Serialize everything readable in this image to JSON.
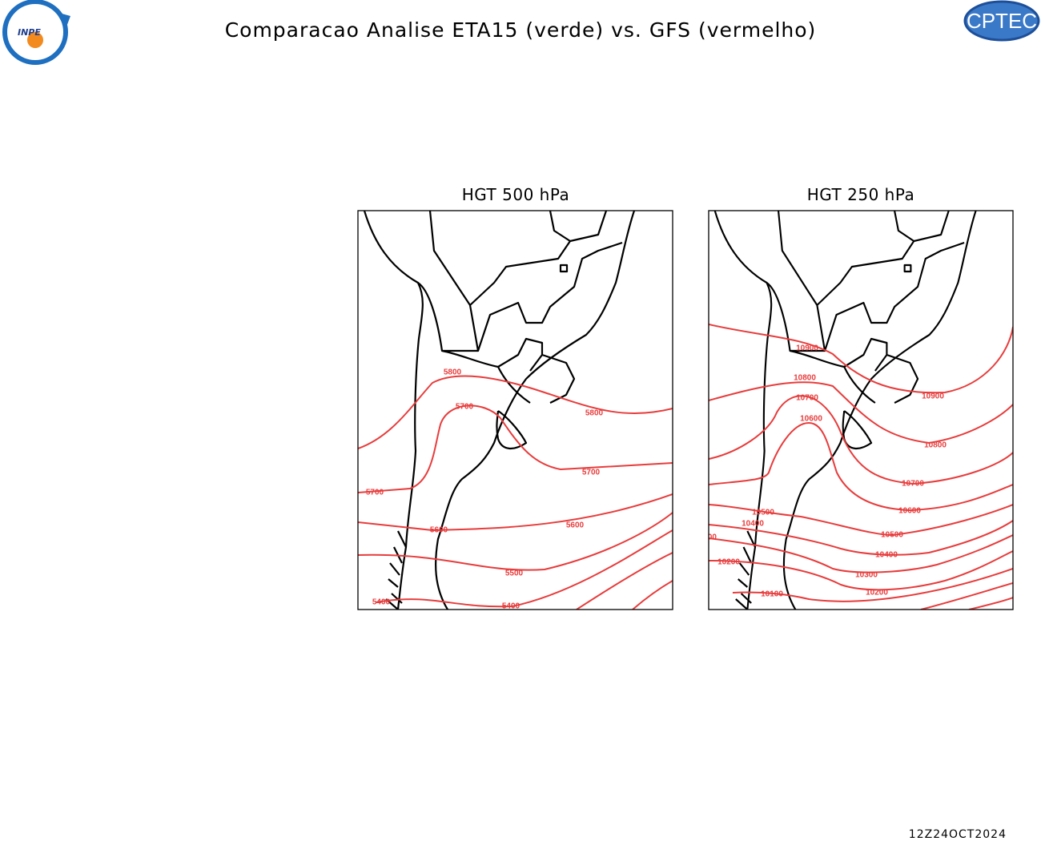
{
  "header": {
    "title": "Comparacao Analise ETA15 (verde) vs. GFS (vermelho)",
    "logo_left": "INPE",
    "logo_right": "CPTEC"
  },
  "panels": [
    {
      "title": "HGT 500 hPa",
      "contour_labels": [
        5800,
        5700,
        5800,
        5700,
        5700,
        5600,
        5600,
        5500,
        5400,
        5400
      ]
    },
    {
      "title": "HGT 250 hPa",
      "contour_labels": [
        10900,
        10900,
        10800,
        10800,
        10700,
        10700,
        10600,
        10600,
        10500,
        10500,
        10400,
        10400,
        10300,
        10300,
        10200,
        10200,
        10100
      ]
    }
  ],
  "footer": {
    "timestamp": "12Z24OCT2024"
  }
}
